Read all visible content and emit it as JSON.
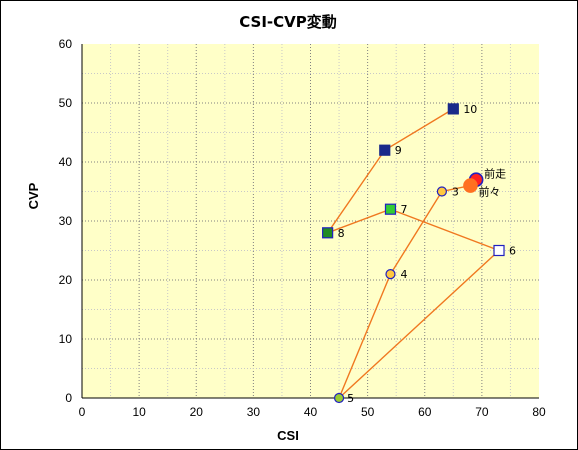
{
  "chart_data": {
    "type": "scatter",
    "title": "CSI-CVP変動",
    "xlabel": "CSI",
    "ylabel": "CVP",
    "xlim": [
      0,
      80
    ],
    "ylim": [
      0,
      60
    ],
    "xticks": [
      "0",
      "10",
      "20",
      "30",
      "40",
      "50",
      "60",
      "70",
      "80"
    ],
    "yticks": [
      "0",
      "10",
      "20",
      "30",
      "40",
      "50",
      "60"
    ],
    "grid": true,
    "line_color": "#f07820",
    "plot_background": "#ffffc8",
    "path_order": [
      "前々",
      "3",
      "4",
      "5",
      "6",
      "7",
      "8",
      "9",
      "10"
    ],
    "points": [
      {
        "label": "前走",
        "x": 69,
        "y": 37,
        "marker": "circle-large",
        "fill": "#ff2020",
        "stroke": "#2020c0"
      },
      {
        "label": "前々",
        "x": 68,
        "y": 36,
        "marker": "circle-large",
        "fill": "#ff7020",
        "stroke": "#ff7020"
      },
      {
        "label": "3",
        "x": 63,
        "y": 35,
        "marker": "circle",
        "fill": "#ffc840",
        "stroke": "#2020c0"
      },
      {
        "label": "4",
        "x": 54,
        "y": 21,
        "marker": "circle",
        "fill": "#ffc840",
        "stroke": "#2020c0"
      },
      {
        "label": "5",
        "x": 45,
        "y": 0,
        "marker": "circle",
        "fill": "#9acd32",
        "stroke": "#2020c0"
      },
      {
        "label": "6",
        "x": 73,
        "y": 25,
        "marker": "square",
        "fill": "#ffffff",
        "stroke": "#2020c0"
      },
      {
        "label": "7",
        "x": 54,
        "y": 32,
        "marker": "square",
        "fill": "#33cc33",
        "stroke": "#2020c0"
      },
      {
        "label": "8",
        "x": 43,
        "y": 28,
        "marker": "square",
        "fill": "#228b22",
        "stroke": "#2020c0"
      },
      {
        "label": "9",
        "x": 53,
        "y": 42,
        "marker": "square",
        "fill": "#1a2a8a",
        "stroke": "#1a2a8a"
      },
      {
        "label": "10",
        "x": 65,
        "y": 49,
        "marker": "square",
        "fill": "#1a2a8a",
        "stroke": "#1a2a8a"
      }
    ]
  }
}
